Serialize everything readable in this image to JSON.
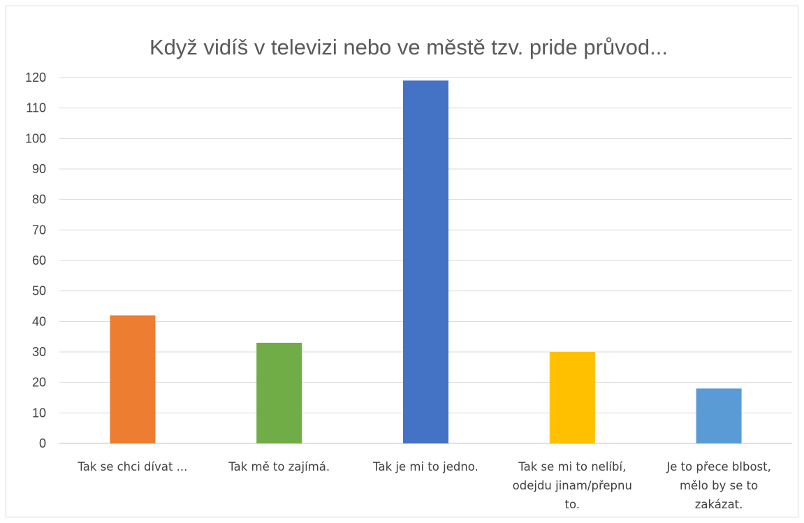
{
  "chart_data": {
    "type": "bar",
    "title": "Když vidíš v televizi nebo ve městě tzv. pride průvod...",
    "categories": [
      "Tak se chci dívat ...",
      "Tak mě to zajímá.",
      "Tak je mi to jedno.",
      "Tak se mi to nelíbí, odejdu jinam/přepnu to.",
      "Je to přece blbost, mělo by se to zakázat."
    ],
    "category_lines": [
      [
        "Tak se chci dívat ..."
      ],
      [
        "Tak mě to zajímá."
      ],
      [
        "Tak je mi to jedno."
      ],
      [
        "Tak se mi to nelíbí,",
        "odejdu jinam/přepnu",
        "to."
      ],
      [
        "Je to přece blbost,",
        "mělo by se to",
        "zakázat."
      ]
    ],
    "values": [
      42,
      33,
      119,
      30,
      18
    ],
    "colors": [
      "#ED7D31",
      "#70AD47",
      "#4472C4",
      "#FFC000",
      "#5B9BD5"
    ],
    "ylim": [
      0,
      120
    ],
    "yticks": [
      0,
      10,
      20,
      30,
      40,
      50,
      60,
      70,
      80,
      90,
      100,
      110,
      120
    ],
    "grid": true,
    "legend": "none",
    "xlabel": "",
    "ylabel": ""
  }
}
